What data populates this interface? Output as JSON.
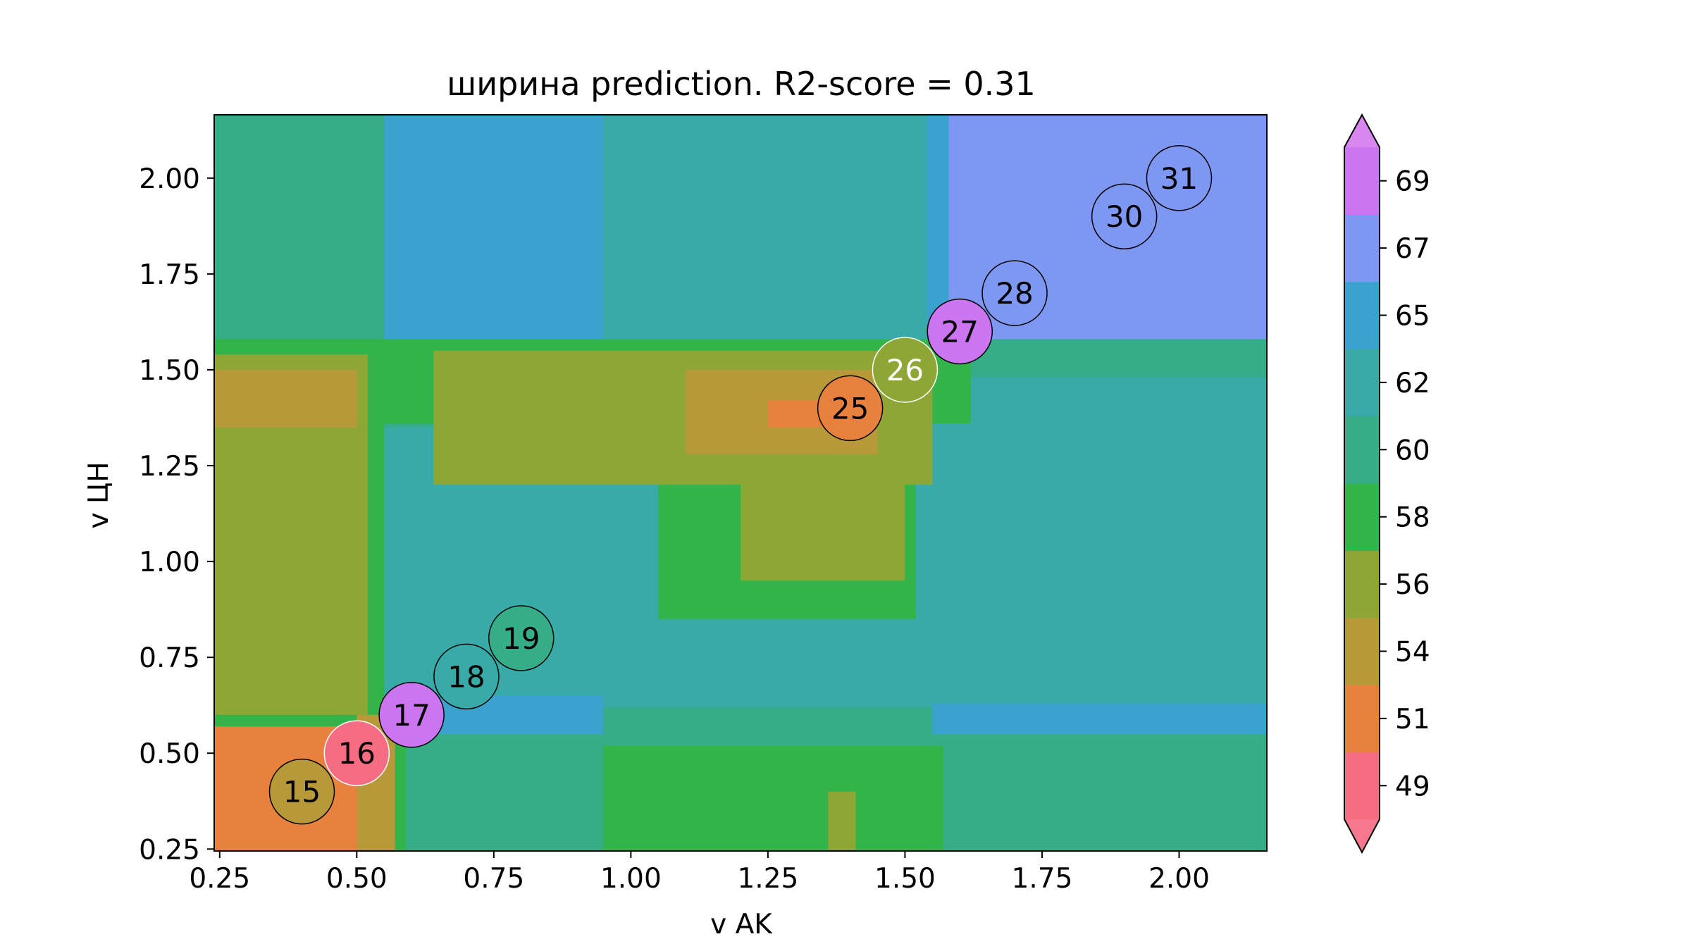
{
  "chart_data": {
    "type": "heatmap",
    "title": "ширина prediction. R2-score = 0.31",
    "xlabel": "v AK",
    "ylabel": "v ЦН",
    "xlim": [
      0.24,
      2.16
    ],
    "ylim": [
      0.245,
      2.165
    ],
    "xticks": [
      0.25,
      0.5,
      0.75,
      1.0,
      1.25,
      1.5,
      1.75,
      2.0
    ],
    "xtick_labels": [
      "0.25",
      "0.50",
      "0.75",
      "1.00",
      "1.25",
      "1.50",
      "1.75",
      "2.00"
    ],
    "yticks": [
      0.25,
      0.5,
      0.75,
      1.0,
      1.25,
      1.5,
      1.75,
      2.0
    ],
    "ytick_labels": [
      "0.25",
      "0.50",
      "0.75",
      "1.00",
      "1.25",
      "1.50",
      "1.75",
      "2.00"
    ],
    "colorbar": {
      "levels": [
        48,
        49.9,
        52,
        54.6,
        56.8,
        58.8,
        61,
        63.7,
        65.8,
        68,
        70
      ],
      "colors": [
        "#f56c83",
        "#e8813d",
        "#b8993a",
        "#8ea636",
        "#32b44a",
        "#35ad89",
        "#38aba8",
        "#3ba2cf",
        "#7e97f2",
        "#cb75f0"
      ],
      "extend_low_color": "#f7778e",
      "extend_high_color": "#d886f0",
      "tick_values": [
        49,
        51,
        54,
        56,
        58,
        60,
        62,
        65,
        67,
        69
      ],
      "tick_labels": [
        "49",
        "51",
        "54",
        "56",
        "58",
        "60",
        "62",
        "65",
        "67",
        "69"
      ]
    },
    "regions": [
      {
        "x": [
          0.24,
          2.16
        ],
        "y": [
          0.245,
          2.165
        ],
        "value": 60
      },
      {
        "x": [
          0.55,
          1.55
        ],
        "y": [
          0.62,
          1.35
        ],
        "value": 62
      },
      {
        "x": [
          0.6,
          0.95
        ],
        "y": [
          0.55,
          0.65
        ],
        "value": 64
      },
      {
        "x": [
          1.55,
          2.16
        ],
        "y": [
          0.55,
          0.63
        ],
        "value": 64
      },
      {
        "x": [
          1.55,
          2.16
        ],
        "y": [
          0.63,
          1.48
        ],
        "value": 62
      },
      {
        "x": [
          0.55,
          0.95
        ],
        "y": [
          1.58,
          2.165
        ],
        "value": 64
      },
      {
        "x": [
          0.95,
          1.55
        ],
        "y": [
          1.58,
          2.165
        ],
        "value": 62
      },
      {
        "x": [
          1.54,
          1.58
        ],
        "y": [
          1.58,
          2.165
        ],
        "value": 64
      },
      {
        "x": [
          1.58,
          2.16
        ],
        "y": [
          1.58,
          2.165
        ],
        "value": 67
      },
      {
        "x": [
          0.24,
          1.62
        ],
        "y": [
          1.36,
          1.58
        ],
        "value": 58
      },
      {
        "x": [
          0.24,
          0.55
        ],
        "y": [
          0.57,
          1.58
        ],
        "value": 58
      },
      {
        "x": [
          0.24,
          0.52
        ],
        "y": [
          0.6,
          1.54
        ],
        "value": 56
      },
      {
        "x": [
          0.24,
          0.5
        ],
        "y": [
          1.35,
          1.5
        ],
        "value": 54
      },
      {
        "x": [
          0.64,
          1.55
        ],
        "y": [
          1.2,
          1.55
        ],
        "value": 56
      },
      {
        "x": [
          1.05,
          1.52
        ],
        "y": [
          0.85,
          1.2
        ],
        "value": 58
      },
      {
        "x": [
          1.2,
          1.5
        ],
        "y": [
          0.95,
          1.3
        ],
        "value": 56
      },
      {
        "x": [
          1.1,
          1.45
        ],
        "y": [
          1.28,
          1.5
        ],
        "value": 54
      },
      {
        "x": [
          1.25,
          1.4
        ],
        "y": [
          1.35,
          1.42
        ],
        "value": 51
      },
      {
        "x": [
          0.24,
          0.55
        ],
        "y": [
          0.245,
          0.57
        ],
        "value": 51
      },
      {
        "x": [
          0.5,
          0.57
        ],
        "y": [
          0.245,
          0.6
        ],
        "value": 54
      },
      {
        "x": [
          0.57,
          0.59
        ],
        "y": [
          0.245,
          0.6
        ],
        "value": 58
      },
      {
        "x": [
          0.95,
          1.57
        ],
        "y": [
          0.245,
          0.52
        ],
        "value": 58
      },
      {
        "x": [
          1.36,
          1.41
        ],
        "y": [
          0.245,
          0.4
        ],
        "value": 56
      }
    ],
    "points": [
      {
        "x": 0.4,
        "y": 0.4,
        "label": "15",
        "value": 53.5
      },
      {
        "x": 0.5,
        "y": 0.5,
        "label": "16",
        "value": 49.5
      },
      {
        "x": 0.6,
        "y": 0.6,
        "label": "17",
        "value": 69.5
      },
      {
        "x": 0.7,
        "y": 0.7,
        "label": "18",
        "value": 63.5
      },
      {
        "x": 0.8,
        "y": 0.8,
        "label": "19",
        "value": 60.5
      },
      {
        "x": 1.4,
        "y": 1.4,
        "label": "25",
        "value": 51
      },
      {
        "x": 1.5,
        "y": 1.5,
        "label": "26",
        "value": 56
      },
      {
        "x": 1.6,
        "y": 1.6,
        "label": "27",
        "value": 69.5
      },
      {
        "x": 1.7,
        "y": 1.7,
        "label": "28",
        "value": 66
      },
      {
        "x": 1.9,
        "y": 1.9,
        "label": "30",
        "value": 66
      },
      {
        "x": 2.0,
        "y": 2.0,
        "label": "31",
        "value": 66.5
      }
    ]
  }
}
